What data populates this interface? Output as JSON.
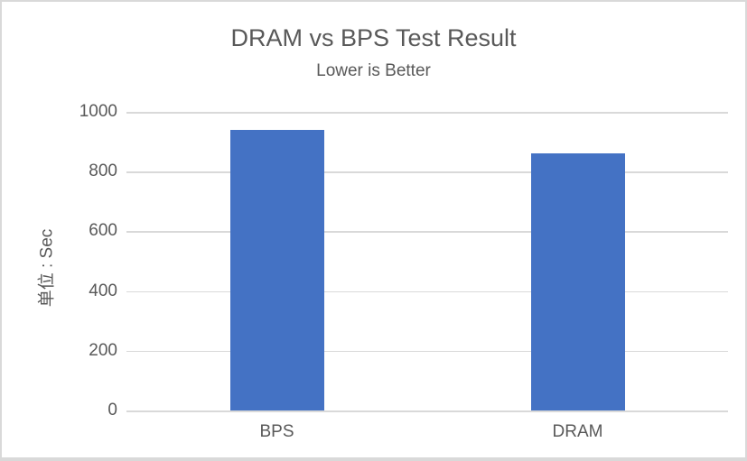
{
  "chart_data": {
    "type": "bar",
    "title": "DRAM vs BPS Test Result",
    "subtitle": "Lower is Better",
    "categories": [
      "BPS",
      "DRAM"
    ],
    "values": [
      940,
      860
    ],
    "xlabel": "",
    "ylabel": "单位 : Sec",
    "ylim": [
      0,
      1000
    ],
    "y_ticks": [
      0,
      200,
      400,
      600,
      800,
      1000
    ],
    "grid": true,
    "legend": false,
    "colors": {
      "bar": "#4472C4",
      "gridline": "#D9D9D9",
      "axis_line": "#D9D9D9",
      "text": "#595959",
      "frame_border": "#D9D9D9"
    }
  }
}
